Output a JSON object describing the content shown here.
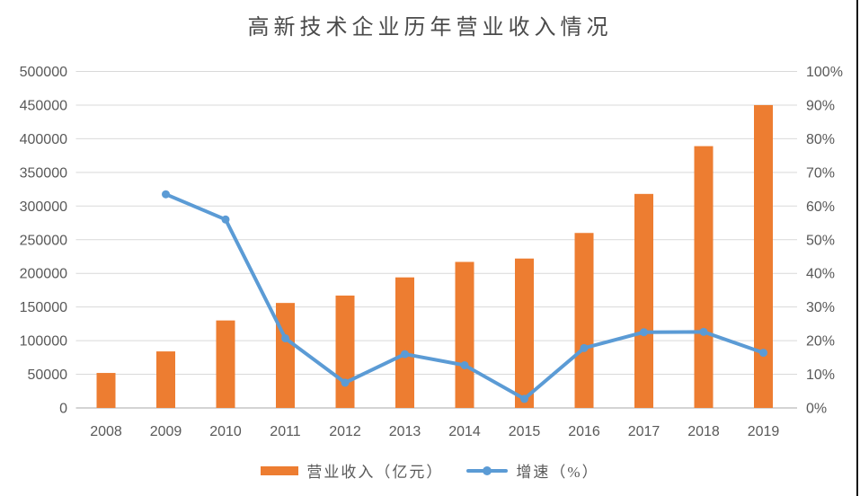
{
  "title": "高新技术企业历年营业收入情况",
  "colors": {
    "bar": "#ED7D31",
    "line": "#5B9BD5",
    "gridline": "#D9D9D9",
    "axis_line": "#C6C6C6",
    "axis_label": "#595959",
    "title": "#4a4a4a",
    "divider": "#141414"
  },
  "legend": {
    "items": [
      {
        "label": "营业收入（亿元）",
        "swatch": "bar"
      },
      {
        "label": "增速（%）",
        "swatch": "line"
      }
    ]
  },
  "chart_data": {
    "type": "combo-bar-line",
    "title": "高新技术企业历年营业收入情况",
    "categories": [
      "2008",
      "2009",
      "2010",
      "2011",
      "2012",
      "2013",
      "2014",
      "2015",
      "2016",
      "2017",
      "2018",
      "2019"
    ],
    "series": [
      {
        "name": "营业收入（亿元）",
        "type": "bar",
        "axis": "left",
        "values": [
          52000,
          84000,
          130000,
          156000,
          167000,
          194000,
          217000,
          222000,
          260000,
          318000,
          389000,
          450000
        ]
      },
      {
        "name": "增速（%）",
        "type": "line",
        "axis": "right",
        "values": [
          null,
          63.5,
          56,
          20.7,
          7.5,
          16,
          12.7,
          2.7,
          17.8,
          22.5,
          22.6,
          16.4
        ]
      }
    ],
    "left_axis": {
      "min": 0,
      "max": 500000,
      "step": 50000,
      "tick_labels": [
        "0",
        "50000",
        "100000",
        "150000",
        "200000",
        "250000",
        "300000",
        "350000",
        "400000",
        "450000",
        "500000"
      ]
    },
    "right_axis": {
      "min": 0,
      "max": 100,
      "step": 10,
      "tick_labels": [
        "0%",
        "10%",
        "20%",
        "30%",
        "40%",
        "50%",
        "60%",
        "70%",
        "80%",
        "90%",
        "100%"
      ]
    },
    "grid": true,
    "legend_position": "bottom"
  }
}
